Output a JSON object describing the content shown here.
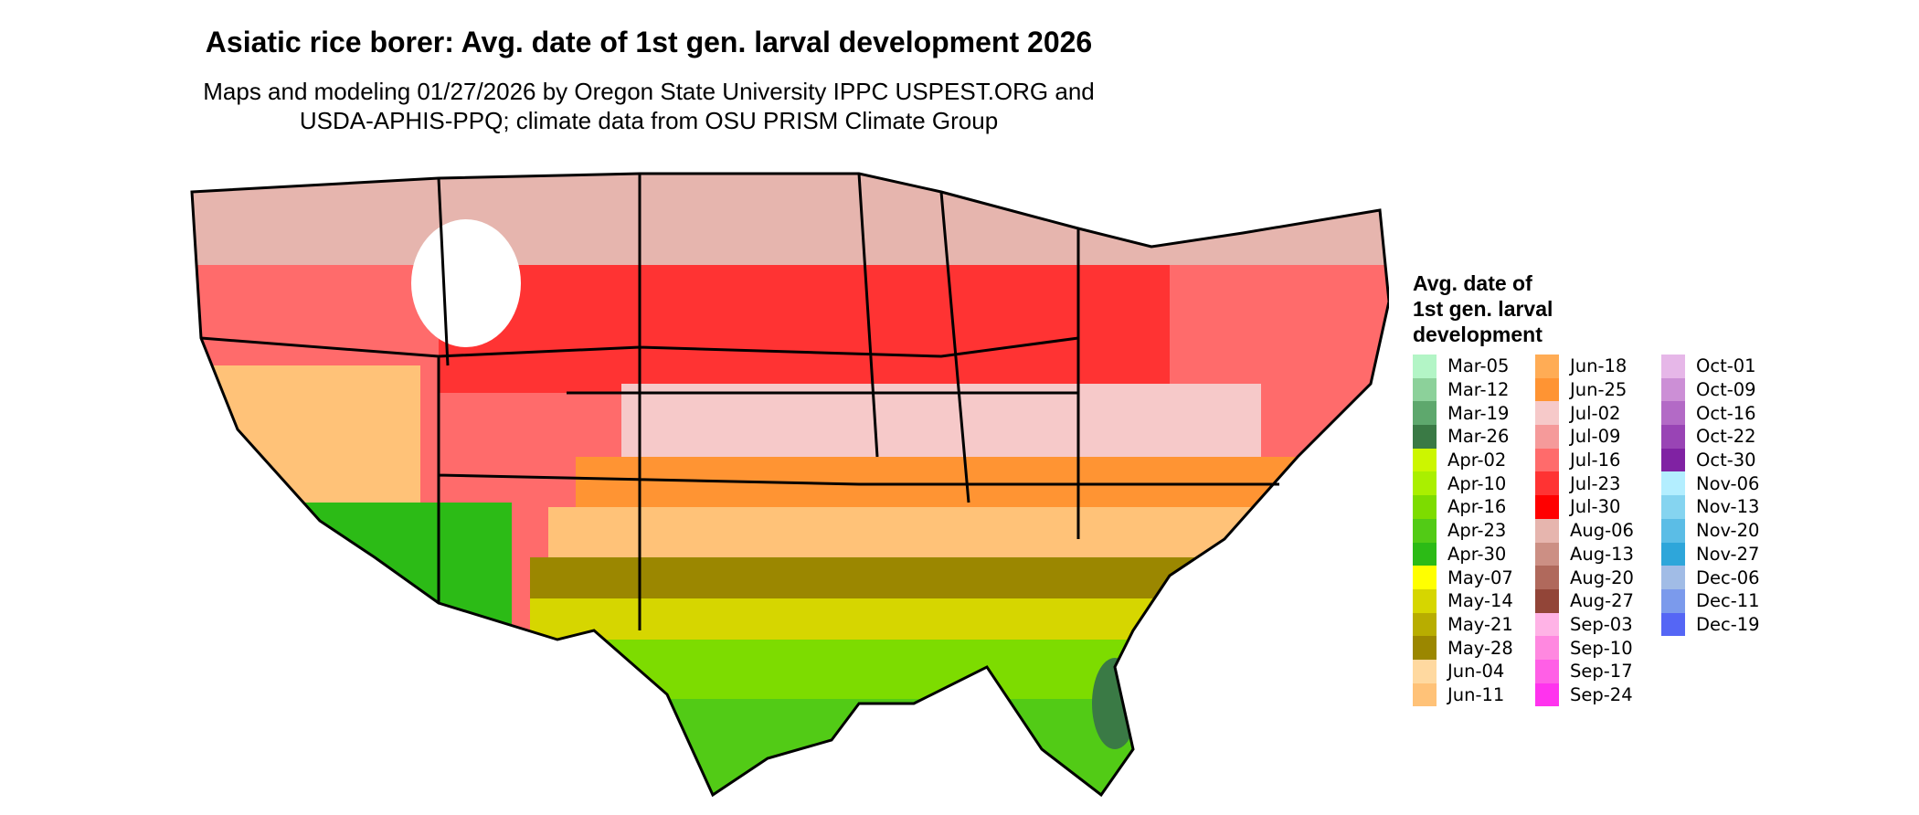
{
  "title": "Asiatic rice borer: Avg. date of 1st gen. larval development 2026",
  "subtitle_lines": [
    "Maps and modeling 01/27/2026 by Oregon State University IPPC USPEST.ORG and",
    "USDA-APHIS-PPQ; climate data from OSU PRISM Climate Group"
  ],
  "legend": {
    "title_lines": [
      "Avg. date of",
      "1st gen. larval",
      "development"
    ],
    "columns": [
      [
        {
          "label": "Mar-05",
          "color": "#b3f5c6"
        },
        {
          "label": "Mar-12",
          "color": "#8cd19a"
        },
        {
          "label": "Mar-19",
          "color": "#5ea86d"
        },
        {
          "label": "Mar-26",
          "color": "#3a7a45"
        },
        {
          "label": "Apr-02",
          "color": "#ccf600"
        },
        {
          "label": "Apr-10",
          "color": "#aaef00"
        },
        {
          "label": "Apr-16",
          "color": "#7ddc00"
        },
        {
          "label": "Apr-23",
          "color": "#52cb16"
        },
        {
          "label": "Apr-30",
          "color": "#2cbb16"
        },
        {
          "label": "May-07",
          "color": "#ffff00"
        },
        {
          "label": "May-14",
          "color": "#d6d600"
        },
        {
          "label": "May-21",
          "color": "#b8ad00"
        },
        {
          "label": "May-28",
          "color": "#9b8700"
        },
        {
          "label": "Jun-04",
          "color": "#ffd9a0"
        },
        {
          "label": "Jun-11",
          "color": "#ffc278"
        }
      ],
      [
        {
          "label": "Jun-18",
          "color": "#ffac55"
        },
        {
          "label": "Jun-25",
          "color": "#ff9433"
        },
        {
          "label": "Jul-02",
          "color": "#f6c9c9"
        },
        {
          "label": "Jul-09",
          "color": "#f59a9a"
        },
        {
          "label": "Jul-16",
          "color": "#ff6b6b"
        },
        {
          "label": "Jul-23",
          "color": "#ff3333"
        },
        {
          "label": "Jul-30",
          "color": "#ff0000"
        },
        {
          "label": "Aug-06",
          "color": "#e6b5ae"
        },
        {
          "label": "Aug-13",
          "color": "#cc8f84"
        },
        {
          "label": "Aug-20",
          "color": "#b0695c"
        },
        {
          "label": "Aug-27",
          "color": "#924538"
        },
        {
          "label": "Sep-03",
          "color": "#ffb3e6"
        },
        {
          "label": "Sep-10",
          "color": "#ff88e0"
        },
        {
          "label": "Sep-17",
          "color": "#ff5fe6"
        },
        {
          "label": "Sep-24",
          "color": "#ff33ee"
        }
      ],
      [
        {
          "label": "Oct-01",
          "color": "#e6b7e8"
        },
        {
          "label": "Oct-09",
          "color": "#cc8fd6"
        },
        {
          "label": "Oct-16",
          "color": "#b36ac6"
        },
        {
          "label": "Oct-22",
          "color": "#9944b5"
        },
        {
          "label": "Oct-30",
          "color": "#8022a3"
        },
        {
          "label": "Nov-06",
          "color": "#b3eeff"
        },
        {
          "label": "Nov-13",
          "color": "#85d4f0"
        },
        {
          "label": "Nov-20",
          "color": "#5bbde6"
        },
        {
          "label": "Nov-27",
          "color": "#2ea6da"
        },
        {
          "label": "Dec-06",
          "color": "#a1bce6"
        },
        {
          "label": "Dec-11",
          "color": "#7b9aec"
        },
        {
          "label": "Dec-19",
          "color": "#5566f5"
        }
      ]
    ]
  }
}
